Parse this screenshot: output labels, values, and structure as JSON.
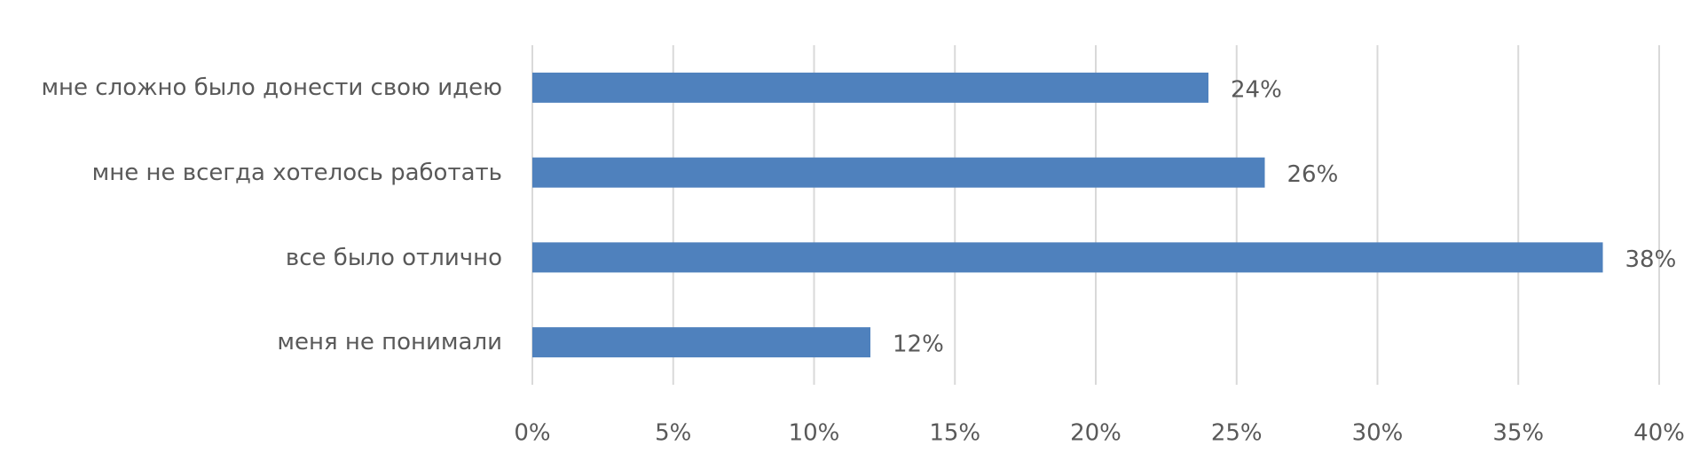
{
  "chart_data": {
    "type": "bar",
    "orientation": "horizontal",
    "categories": [
      "мне сложно было донести свою идею",
      "мне не всегда хотелось работать",
      "все было отлично",
      "меня не понимали"
    ],
    "values": [
      24,
      26,
      38,
      12
    ],
    "value_labels": [
      "24%",
      "26%",
      "38%",
      "12%"
    ],
    "color": "#4f81bd",
    "xlim": [
      0,
      40
    ],
    "xticks": [
      {
        "value": 0,
        "label": "0%"
      },
      {
        "value": 5,
        "label": "5%"
      },
      {
        "value": 10,
        "label": "10%"
      },
      {
        "value": 15,
        "label": "15%"
      },
      {
        "value": 20,
        "label": "20%"
      },
      {
        "value": 25,
        "label": "25%"
      },
      {
        "value": 30,
        "label": "30%"
      },
      {
        "value": 35,
        "label": "35%"
      },
      {
        "value": 40,
        "label": "40%"
      }
    ],
    "grid": true
  }
}
